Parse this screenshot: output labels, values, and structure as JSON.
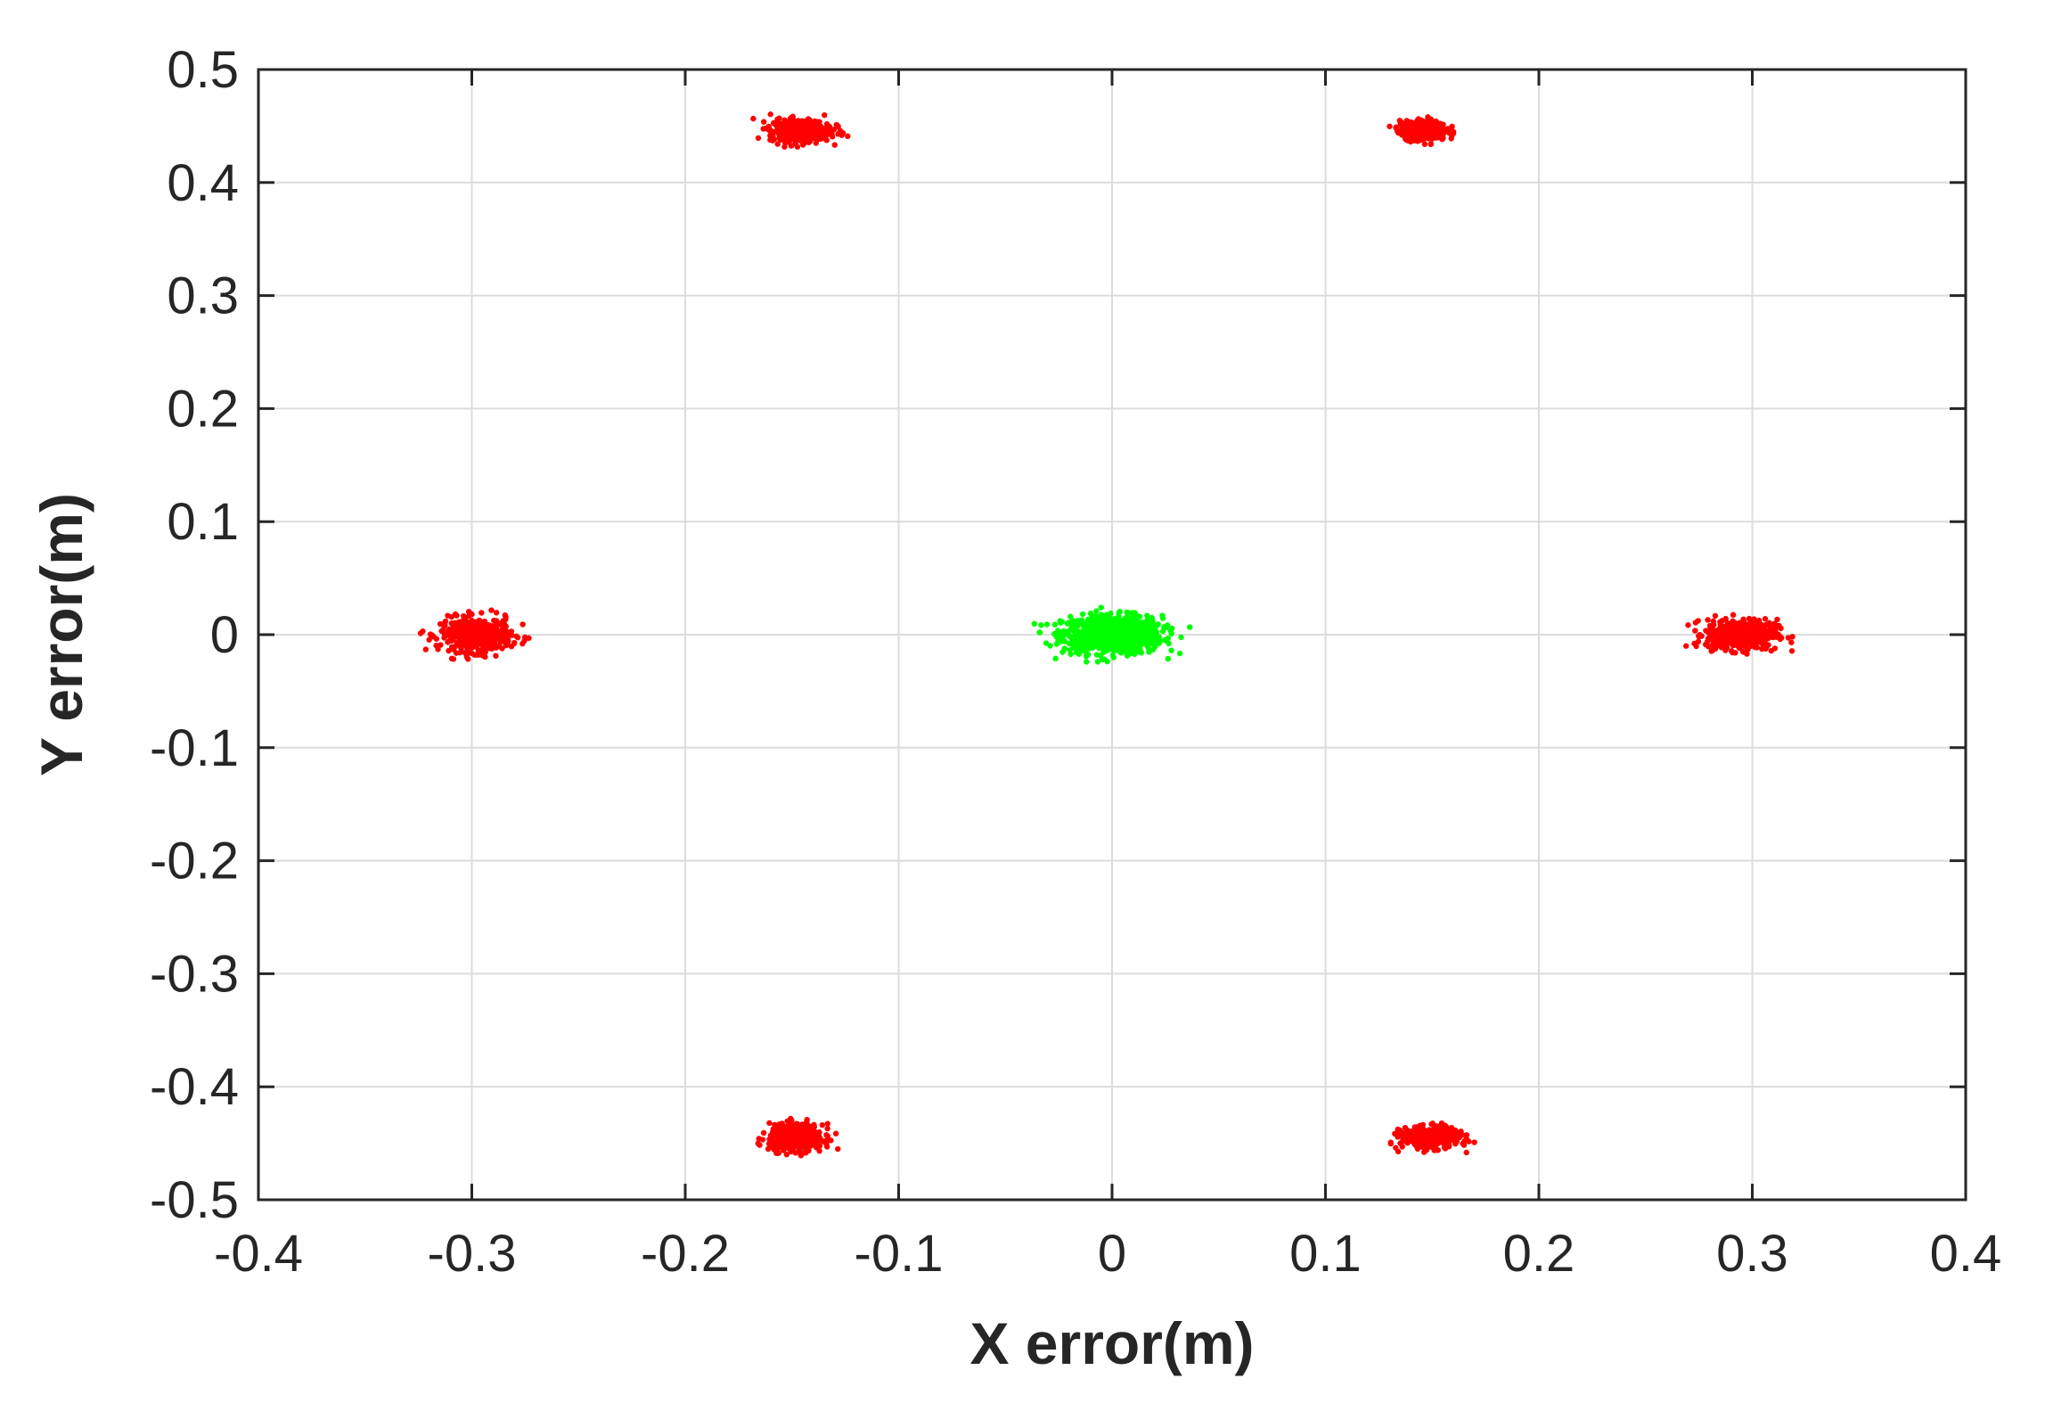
{
  "chart_data": {
    "type": "scatter",
    "title": "",
    "xlabel": "X error(m)",
    "ylabel": "Y error(m)",
    "xlim": [
      -0.4,
      0.4
    ],
    "ylim": [
      -0.5,
      0.5
    ],
    "xticks": [
      -0.4,
      -0.3,
      -0.2,
      -0.1,
      0,
      0.1,
      0.2,
      0.3,
      0.4
    ],
    "yticks": [
      -0.5,
      -0.4,
      -0.3,
      -0.2,
      -0.1,
      0,
      0.1,
      0.2,
      0.3,
      0.4,
      0.5
    ],
    "xtick_labels": [
      "-0.4",
      "-0.3",
      "-0.2",
      "-0.1",
      "0",
      "0.1",
      "0.2",
      "0.3",
      "0.4"
    ],
    "ytick_labels": [
      "-0.5",
      "-0.4",
      "-0.3",
      "-0.2",
      "-0.1",
      "0",
      "0.1",
      "0.2",
      "0.3",
      "0.4",
      "0.5"
    ],
    "grid": true,
    "legend": null,
    "series": [
      {
        "color": "#00ff00",
        "clusters": [
          {
            "center": [
              0.0,
              0.0
            ],
            "spread": [
              0.028,
              0.02
            ]
          }
        ]
      },
      {
        "color": "#ff0000",
        "clusters": [
          {
            "center": [
              -0.298,
              0.0
            ],
            "spread": [
              0.02,
              0.018
            ]
          },
          {
            "center": [
              0.295,
              0.0
            ],
            "spread": [
              0.02,
              0.016
            ]
          },
          {
            "center": [
              -0.146,
              0.446
            ],
            "spread": [
              0.017,
              0.012
            ]
          },
          {
            "center": [
              0.146,
              0.446
            ],
            "spread": [
              0.013,
              0.01
            ]
          },
          {
            "center": [
              -0.148,
              -0.445
            ],
            "spread": [
              0.015,
              0.014
            ]
          },
          {
            "center": [
              0.149,
              -0.445
            ],
            "spread": [
              0.016,
              0.011
            ]
          }
        ]
      }
    ]
  }
}
